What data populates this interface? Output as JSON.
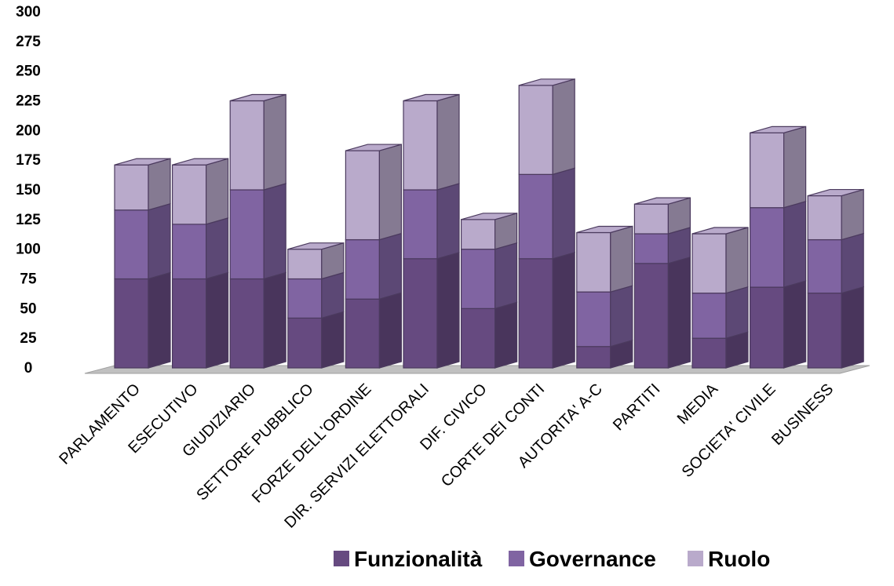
{
  "chart_data": {
    "type": "bar",
    "stacked": true,
    "three_d": true,
    "title": "",
    "xlabel": "",
    "ylabel": "",
    "ylim": [
      0,
      300
    ],
    "y_ticks": [
      "0",
      "25",
      "50",
      "75",
      "100",
      "125",
      "150",
      "175",
      "200",
      "225",
      "250",
      "275",
      "300"
    ],
    "grid": false,
    "legend_position": "bottom",
    "categories": [
      "PARLAMENTO",
      "ESECUTIVO",
      "GIUDIZIARIO",
      "SETTORE PUBBLICO",
      "FORZE DELL'ORDINE",
      "DIR. SERVIZI ELETTORALI",
      "DIF. CIVICO",
      "CORTE DEI CONTI",
      "AUTORITA' A-C",
      "PARTITI",
      "MEDIA",
      "SOCIETA' CIVILE",
      "BUSINESS"
    ],
    "series": [
      {
        "name": "Funzionalità",
        "color": "#664a80",
        "values": [
          75,
          75,
          75,
          42,
          58,
          92,
          50,
          92,
          18,
          88,
          25,
          68,
          63
        ]
      },
      {
        "name": "Governance",
        "color": "#8064a2",
        "values": [
          58,
          46,
          75,
          33,
          50,
          58,
          50,
          71,
          46,
          25,
          38,
          67,
          45
        ]
      },
      {
        "name": "Ruolo",
        "color": "#b9aacb",
        "values": [
          38,
          50,
          75,
          25,
          75,
          75,
          25,
          75,
          50,
          25,
          50,
          63,
          37
        ]
      }
    ]
  }
}
